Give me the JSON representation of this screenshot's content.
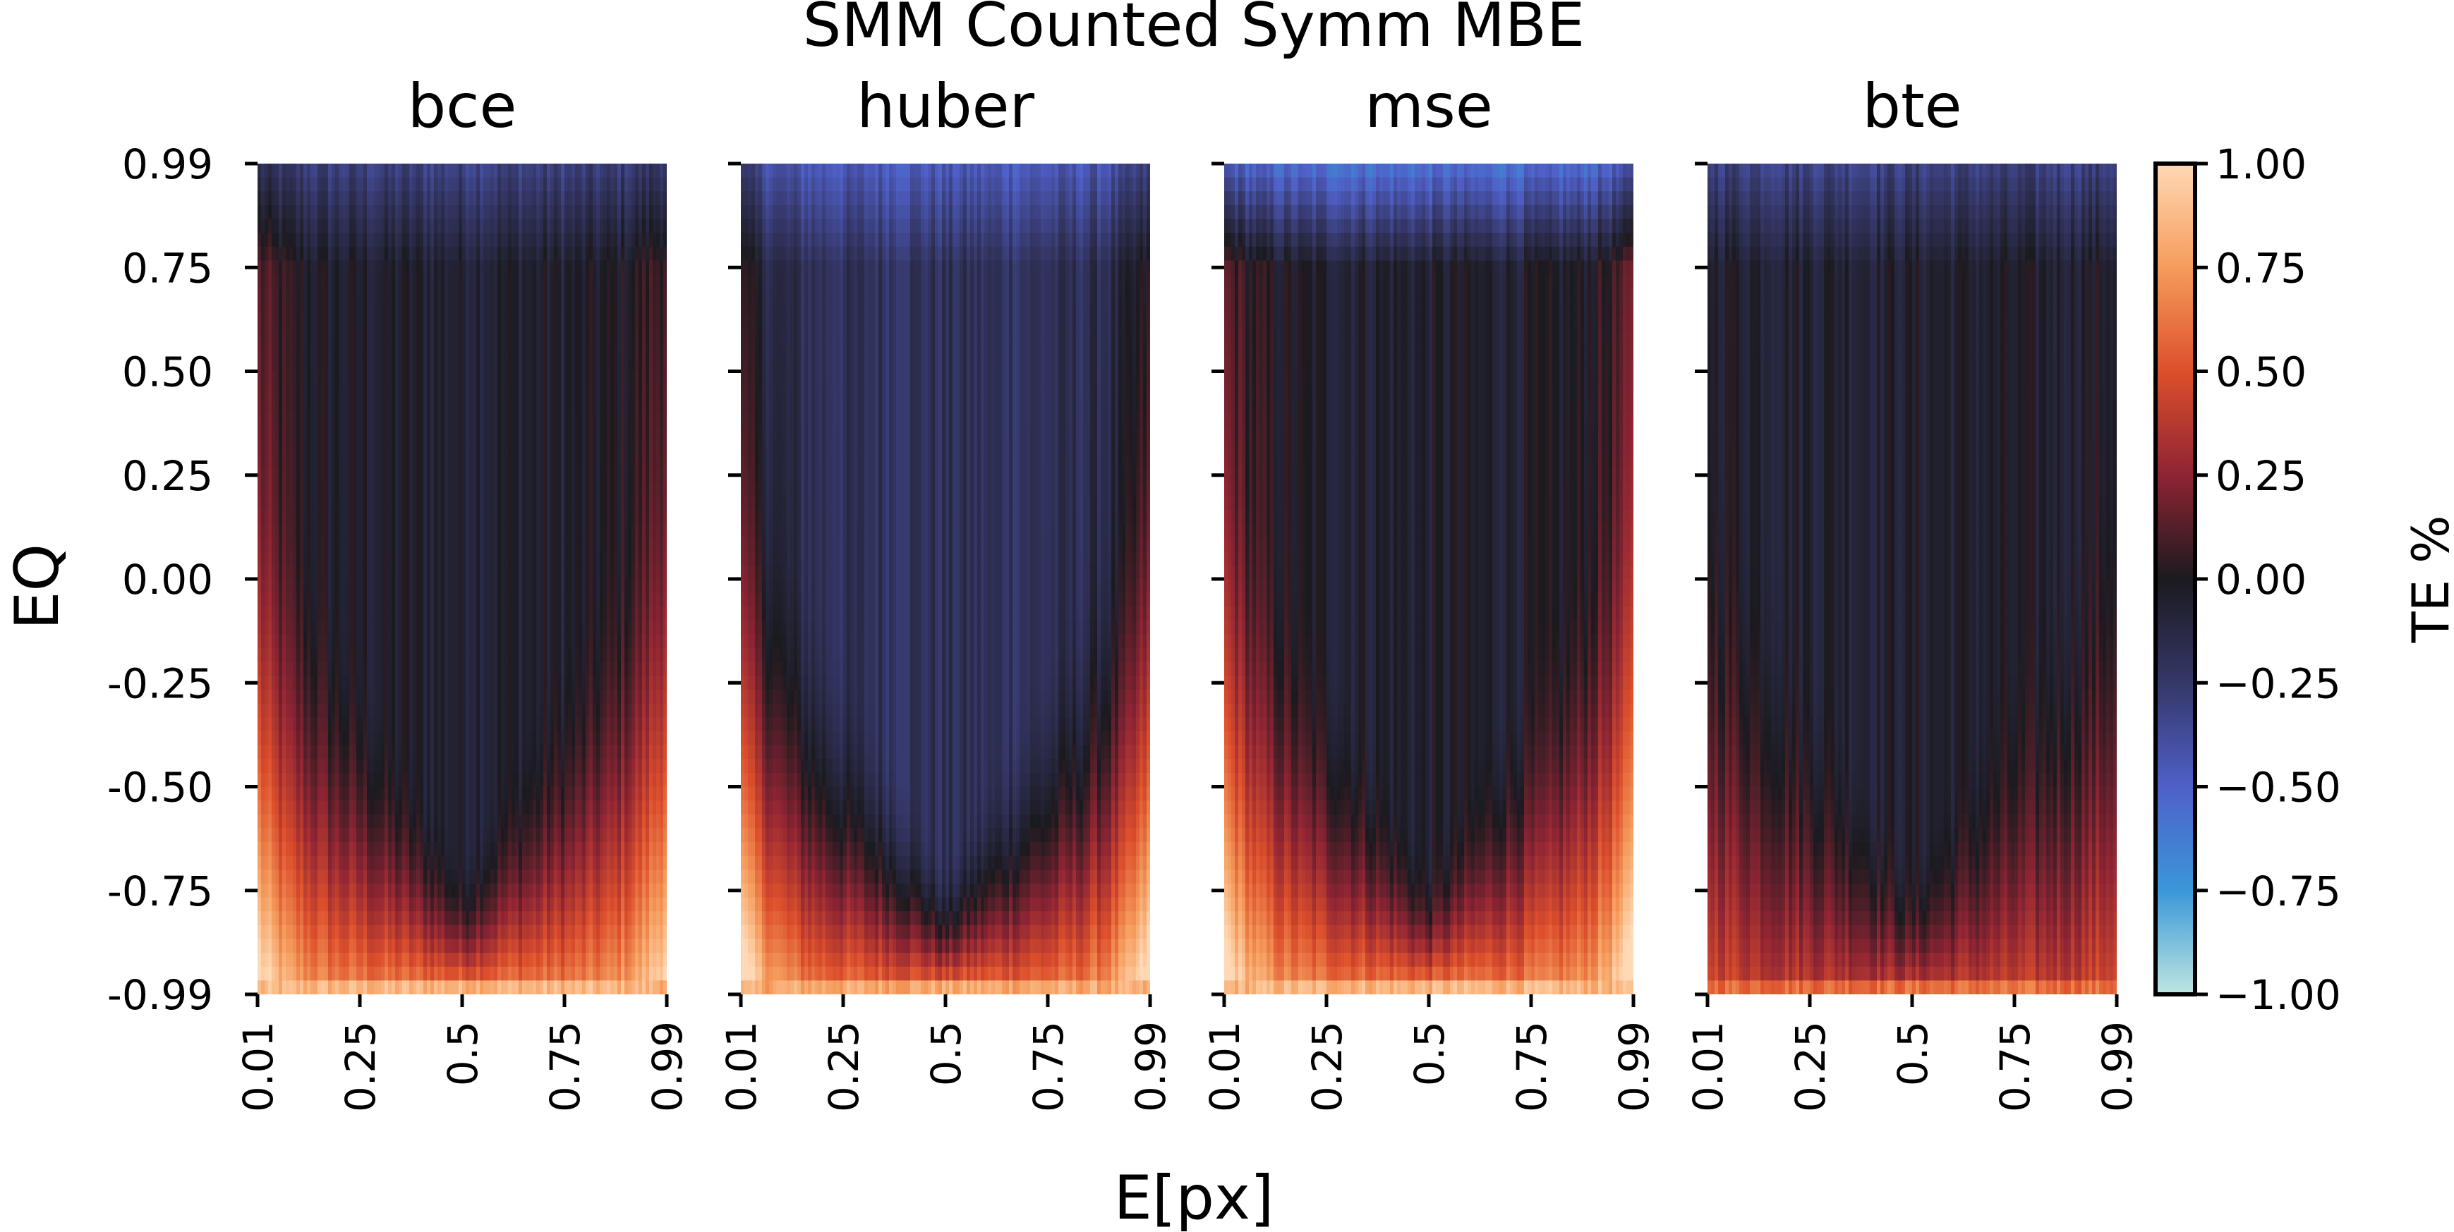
{
  "chart_data": {
    "type": "heatmap",
    "title": "SMM Counted Symm MBE",
    "xlabel": "E[px]",
    "ylabel": "EQ",
    "x_ticks": [
      "0.01",
      "0.25",
      "0.5",
      "0.75",
      "0.99"
    ],
    "y_ticks": [
      "0.99",
      "0.75",
      "0.50",
      "0.25",
      "0.00",
      "-0.25",
      "-0.50",
      "-0.75",
      "-0.99"
    ],
    "colorbar": {
      "label": "TE %",
      "range": [
        -1.0,
        1.0
      ],
      "ticks": [
        "1.00",
        "0.75",
        "0.50",
        "0.25",
        "0.00",
        "−0.25",
        "−0.50",
        "−0.75",
        "−1.00"
      ],
      "colormap": "icefire"
    },
    "panels": [
      {
        "name": "bce",
        "summary": {
          "top_value": -0.3,
          "bottom_value": 0.65,
          "edge_value": 0.45,
          "center_value": -0.05
        }
      },
      {
        "name": "huber",
        "summary": {
          "top_value": -0.45,
          "bottom_value": 0.6,
          "edge_value": 0.55,
          "center_value": -0.2
        }
      },
      {
        "name": "mse",
        "summary": {
          "top_value": -0.55,
          "bottom_value": 0.65,
          "edge_value": 0.5,
          "center_value": -0.05
        }
      },
      {
        "name": "bte",
        "summary": {
          "top_value": -0.3,
          "bottom_value": 0.4,
          "edge_value": 0.1,
          "center_value": -0.05
        }
      }
    ]
  }
}
